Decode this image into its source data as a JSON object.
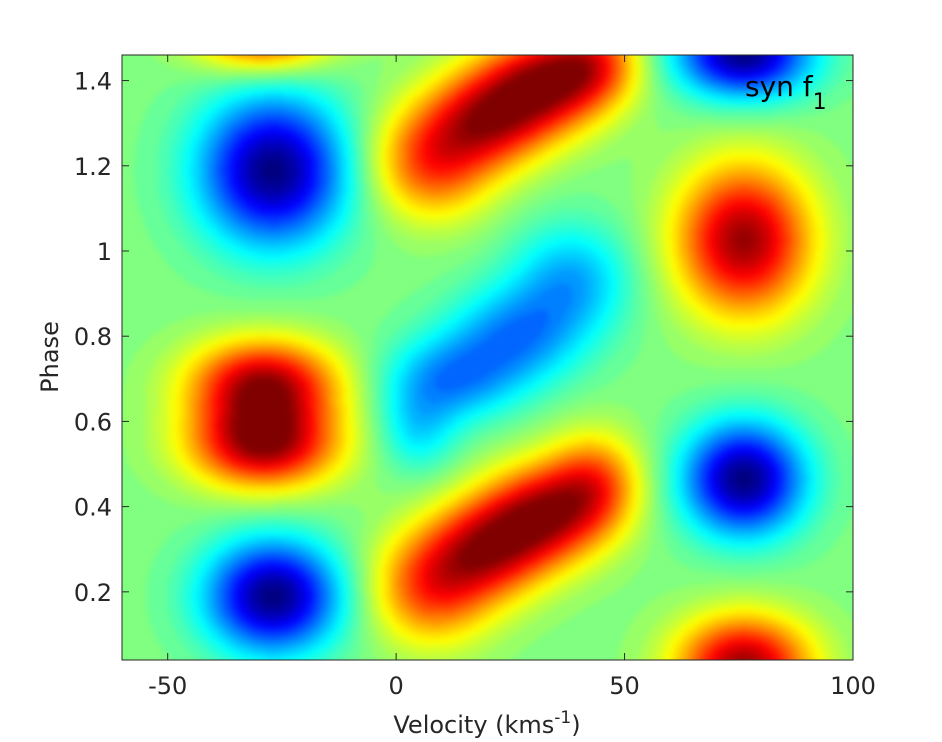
{
  "chart_data": {
    "type": "heatmap",
    "annotation": {
      "text": "syn f",
      "subscript": "1"
    },
    "xlabel": {
      "text": "Velocity (kms",
      "superscript": "-1",
      "suffix": ")"
    },
    "ylabel": "Phase",
    "xlim": [
      -60,
      100
    ],
    "ylim": [
      0.04,
      1.46
    ],
    "xticks": [
      {
        "value": -50,
        "label": "-50"
      },
      {
        "value": 0,
        "label": "0"
      },
      {
        "value": 50,
        "label": "50"
      },
      {
        "value": 100,
        "label": "100"
      }
    ],
    "yticks": [
      {
        "value": 0.2,
        "label": "0.2"
      },
      {
        "value": 0.4,
        "label": "0.4"
      },
      {
        "value": 0.6,
        "label": "0.6"
      },
      {
        "value": 0.8,
        "label": "0.8"
      },
      {
        "value": 1.0,
        "label": "1"
      },
      {
        "value": 1.2,
        "label": "1.2"
      },
      {
        "value": 1.4,
        "label": "1.4"
      }
    ],
    "colormap": "jet",
    "value_range": [
      -1,
      1
    ],
    "background_value": 0.0,
    "grid": false,
    "features": [
      {
        "v": -26,
        "phase": 0.2,
        "amplitude": -1.0,
        "sigma_v": 10,
        "sigma_phase": 0.09
      },
      {
        "v": -26,
        "phase": 1.18,
        "amplitude": -1.0,
        "sigma_v": 11,
        "sigma_phase": 0.12
      },
      {
        "v": -28,
        "phase": 0.55,
        "amplitude": 0.95,
        "sigma_v": 11,
        "sigma_phase": 0.07
      },
      {
        "v": -28,
        "phase": 0.69,
        "amplitude": 0.9,
        "sigma_v": 11,
        "sigma_phase": 0.07
      },
      {
        "v": -28,
        "phase": 1.5,
        "amplitude": 0.8,
        "sigma_v": 10,
        "sigma_phase": 0.06
      },
      {
        "v": 8,
        "phase": 0.22,
        "amplitude": 0.62,
        "sigma_v": 9,
        "sigma_phase": 0.09
      },
      {
        "v": 20,
        "phase": 0.31,
        "amplitude": 0.72,
        "sigma_v": 9,
        "sigma_phase": 0.08
      },
      {
        "v": 32,
        "phase": 0.39,
        "amplitude": 0.8,
        "sigma_v": 9,
        "sigma_phase": 0.08
      },
      {
        "v": 43,
        "phase": 0.46,
        "amplitude": 0.55,
        "sigma_v": 7,
        "sigma_phase": 0.08
      },
      {
        "v": 8,
        "phase": 1.2,
        "amplitude": 0.62,
        "sigma_v": 9,
        "sigma_phase": 0.09
      },
      {
        "v": 20,
        "phase": 1.3,
        "amplitude": 0.72,
        "sigma_v": 9,
        "sigma_phase": 0.08
      },
      {
        "v": 32,
        "phase": 1.38,
        "amplitude": 0.82,
        "sigma_v": 9,
        "sigma_phase": 0.08
      },
      {
        "v": 43,
        "phase": 1.43,
        "amplitude": 0.55,
        "sigma_v": 7,
        "sigma_phase": 0.07
      },
      {
        "v": 12,
        "phase": 0.7,
        "amplitude": -0.45,
        "sigma_v": 10,
        "sigma_phase": 0.07
      },
      {
        "v": 26,
        "phase": 0.8,
        "amplitude": -0.45,
        "sigma_v": 10,
        "sigma_phase": 0.08
      },
      {
        "v": 38,
        "phase": 0.93,
        "amplitude": -0.4,
        "sigma_v": 9,
        "sigma_phase": 0.09
      },
      {
        "v": 5,
        "phase": 0.58,
        "amplitude": -0.28,
        "sigma_v": 6,
        "sigma_phase": 0.07
      },
      {
        "v": 75,
        "phase": 0.47,
        "amplitude": -1.0,
        "sigma_v": 9,
        "sigma_phase": 0.09
      },
      {
        "v": 75,
        "phase": 1.45,
        "amplitude": -1.0,
        "sigma_v": 10,
        "sigma_phase": 0.07
      },
      {
        "v": 75,
        "phase": 1.02,
        "amplitude": 0.95,
        "sigma_v": 10,
        "sigma_phase": 0.12
      },
      {
        "v": 75,
        "phase": 0.04,
        "amplitude": 0.95,
        "sigma_v": 10,
        "sigma_phase": 0.08
      }
    ]
  }
}
